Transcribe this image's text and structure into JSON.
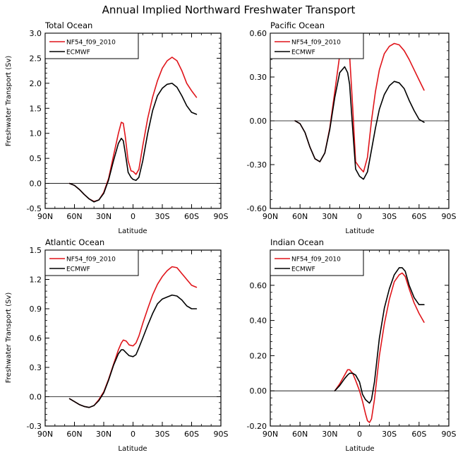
{
  "figure": {
    "title": "Annual Implied Northward Freshwater Transport",
    "series_colors": [
      "#e0141a",
      "#000000"
    ]
  },
  "chart_data": [
    {
      "type": "line",
      "panel_title": "Total Ocean",
      "xlabel": "Latitude",
      "ylabel": "Freshwater Transport (Sv)",
      "xlim": [
        -90,
        90
      ],
      "x_ticks": [
        -90,
        -60,
        -30,
        0,
        30,
        60,
        90
      ],
      "x_tick_labels": [
        "90N",
        "60N",
        "30N",
        "0",
        "30S",
        "60S",
        "90S"
      ],
      "ylim": [
        -0.5,
        3.0
      ],
      "y_ticks": [
        -0.5,
        0.0,
        0.5,
        1.0,
        1.5,
        2.0,
        2.5,
        3.0
      ],
      "y_tick_labels": [
        "-0.5",
        "0.0",
        "0.5",
        "1.0",
        "1.5",
        "2.0",
        "2.5",
        "3.0"
      ],
      "zero_line": true,
      "legend": "top-left",
      "series": [
        {
          "name": "NF54_f09_2010",
          "color": "#e0141a",
          "x": [
            -65,
            -60,
            -55,
            -50,
            -45,
            -40,
            -35,
            -30,
            -25,
            -20,
            -15,
            -12,
            -10,
            -8,
            -5,
            -2,
            0,
            3,
            6,
            10,
            15,
            20,
            25,
            30,
            35,
            40,
            45,
            50,
            55,
            60,
            65
          ],
          "y": [
            0.0,
            -0.04,
            -0.12,
            -0.22,
            -0.31,
            -0.36,
            -0.33,
            -0.18,
            0.1,
            0.55,
            1.0,
            1.22,
            1.2,
            0.95,
            0.45,
            0.25,
            0.24,
            0.18,
            0.28,
            0.75,
            1.3,
            1.72,
            2.05,
            2.3,
            2.45,
            2.52,
            2.45,
            2.25,
            2.0,
            1.85,
            1.72
          ]
        },
        {
          "name": "ECMWF",
          "color": "#000000",
          "x": [
            -65,
            -60,
            -55,
            -50,
            -45,
            -40,
            -35,
            -30,
            -25,
            -20,
            -15,
            -12,
            -10,
            -8,
            -5,
            -2,
            0,
            3,
            6,
            10,
            15,
            20,
            25,
            30,
            35,
            40,
            45,
            50,
            55,
            60,
            65
          ],
          "y": [
            0.0,
            -0.04,
            -0.12,
            -0.22,
            -0.31,
            -0.37,
            -0.33,
            -0.2,
            0.07,
            0.45,
            0.8,
            0.9,
            0.85,
            0.62,
            0.22,
            0.12,
            0.08,
            0.06,
            0.12,
            0.45,
            1.0,
            1.45,
            1.75,
            1.9,
            1.98,
            2.0,
            1.92,
            1.75,
            1.55,
            1.42,
            1.38
          ]
        }
      ]
    },
    {
      "type": "line",
      "panel_title": "Pacific Ocean",
      "xlabel": "Latitude",
      "ylabel": "",
      "xlim": [
        -90,
        90
      ],
      "x_ticks": [
        -90,
        -60,
        -30,
        0,
        30,
        60,
        90
      ],
      "x_tick_labels": [
        "90N",
        "60N",
        "30N",
        "0",
        "30S",
        "60S",
        "90S"
      ],
      "ylim": [
        -0.6,
        0.6
      ],
      "y_ticks": [
        -0.6,
        -0.3,
        0.0,
        0.3,
        0.6
      ],
      "y_tick_labels": [
        "-0.60",
        "-0.30",
        "0.00",
        "0.30",
        "0.60"
      ],
      "zero_line": true,
      "legend": "top-left",
      "series": [
        {
          "name": "NF54_f09_2010",
          "color": "#e0141a",
          "x": [
            -65,
            -60,
            -55,
            -50,
            -45,
            -40,
            -35,
            -30,
            -25,
            -20,
            -15,
            -12,
            -10,
            -7,
            -4,
            0,
            4,
            8,
            12,
            16,
            20,
            25,
            30,
            35,
            40,
            45,
            50,
            55,
            60,
            65
          ],
          "y": [
            0.0,
            -0.02,
            -0.08,
            -0.18,
            -0.26,
            -0.28,
            -0.22,
            -0.05,
            0.2,
            0.45,
            0.57,
            0.55,
            0.45,
            0.1,
            -0.28,
            -0.32,
            -0.35,
            -0.25,
            0.0,
            0.2,
            0.35,
            0.46,
            0.51,
            0.53,
            0.52,
            0.48,
            0.42,
            0.35,
            0.28,
            0.21
          ]
        },
        {
          "name": "ECMWF",
          "color": "#000000",
          "x": [
            -65,
            -60,
            -55,
            -50,
            -45,
            -40,
            -35,
            -30,
            -25,
            -20,
            -15,
            -12,
            -10,
            -7,
            -4,
            0,
            4,
            8,
            12,
            16,
            20,
            25,
            30,
            35,
            40,
            45,
            50,
            55,
            60,
            65
          ],
          "y": [
            0.0,
            -0.02,
            -0.08,
            -0.18,
            -0.26,
            -0.28,
            -0.22,
            -0.06,
            0.16,
            0.33,
            0.37,
            0.33,
            0.25,
            -0.05,
            -0.33,
            -0.38,
            -0.4,
            -0.35,
            -0.2,
            -0.05,
            0.08,
            0.18,
            0.24,
            0.27,
            0.26,
            0.22,
            0.14,
            0.07,
            0.01,
            -0.01
          ]
        }
      ]
    },
    {
      "type": "line",
      "panel_title": "Atlantic Ocean",
      "xlabel": "Latitude",
      "ylabel": "Freshwater Transport (Sv)",
      "xlim": [
        -90,
        90
      ],
      "x_ticks": [
        -90,
        -60,
        -30,
        0,
        30,
        60,
        90
      ],
      "x_tick_labels": [
        "90N",
        "60N",
        "30N",
        "0",
        "30S",
        "60S",
        "90S"
      ],
      "ylim": [
        -0.3,
        1.5
      ],
      "y_ticks": [
        -0.3,
        0.0,
        0.3,
        0.6,
        0.9,
        1.2,
        1.5
      ],
      "y_tick_labels": [
        "-0.3",
        "0.0",
        "0.3",
        "0.6",
        "0.9",
        "1.2",
        "1.5"
      ],
      "zero_line": true,
      "legend": "top-left",
      "series": [
        {
          "name": "NF54_f09_2010",
          "color": "#e0141a",
          "x": [
            -65,
            -60,
            -55,
            -50,
            -45,
            -40,
            -35,
            -30,
            -25,
            -20,
            -15,
            -12,
            -10,
            -7,
            -4,
            0,
            3,
            6,
            10,
            15,
            20,
            25,
            30,
            35,
            40,
            45,
            50,
            55,
            60,
            65
          ],
          "y": [
            -0.02,
            -0.05,
            -0.08,
            -0.1,
            -0.11,
            -0.09,
            -0.03,
            0.05,
            0.18,
            0.33,
            0.48,
            0.55,
            0.58,
            0.57,
            0.53,
            0.52,
            0.55,
            0.62,
            0.75,
            0.9,
            1.04,
            1.15,
            1.23,
            1.29,
            1.33,
            1.32,
            1.26,
            1.2,
            1.14,
            1.12
          ]
        },
        {
          "name": "ECMWF",
          "color": "#000000",
          "x": [
            -65,
            -60,
            -55,
            -50,
            -45,
            -40,
            -35,
            -30,
            -25,
            -20,
            -15,
            -12,
            -10,
            -7,
            -4,
            0,
            3,
            6,
            10,
            15,
            20,
            25,
            30,
            35,
            40,
            45,
            50,
            55,
            60,
            65
          ],
          "y": [
            -0.02,
            -0.05,
            -0.08,
            -0.1,
            -0.11,
            -0.09,
            -0.04,
            0.04,
            0.17,
            0.32,
            0.44,
            0.48,
            0.48,
            0.45,
            0.42,
            0.41,
            0.43,
            0.5,
            0.6,
            0.73,
            0.85,
            0.95,
            1.0,
            1.02,
            1.04,
            1.03,
            0.99,
            0.93,
            0.9,
            0.9
          ]
        }
      ]
    },
    {
      "type": "line",
      "panel_title": "Indian Ocean",
      "xlabel": "Latitude",
      "ylabel": "",
      "xlim": [
        -90,
        90
      ],
      "x_ticks": [
        -90,
        -60,
        -30,
        0,
        30,
        60,
        90
      ],
      "x_tick_labels": [
        "90N",
        "60N",
        "30N",
        "0",
        "30S",
        "60S",
        "90S"
      ],
      "ylim": [
        -0.2,
        0.8
      ],
      "y_ticks": [
        -0.2,
        0.0,
        0.2,
        0.4,
        0.6
      ],
      "y_tick_labels": [
        "-0.20",
        "0.00",
        "0.20",
        "0.40",
        "0.60"
      ],
      "zero_line": true,
      "legend": "top-left",
      "series": [
        {
          "name": "NF54_f09_2010",
          "color": "#e0141a",
          "x": [
            -25,
            -20,
            -15,
            -12,
            -10,
            -7,
            -4,
            0,
            3,
            6,
            8,
            10,
            12,
            15,
            18,
            20,
            25,
            30,
            35,
            40,
            43,
            46,
            50,
            55,
            60,
            65
          ],
          "y": [
            0.0,
            0.04,
            0.09,
            0.12,
            0.12,
            0.1,
            0.06,
            0.0,
            -0.06,
            -0.13,
            -0.17,
            -0.18,
            -0.16,
            -0.05,
            0.1,
            0.2,
            0.38,
            0.52,
            0.62,
            0.66,
            0.67,
            0.65,
            0.58,
            0.5,
            0.44,
            0.39
          ]
        },
        {
          "name": "ECMWF",
          "color": "#000000",
          "x": [
            -25,
            -20,
            -15,
            -12,
            -10,
            -7,
            -4,
            0,
            3,
            6,
            8,
            10,
            12,
            15,
            18,
            20,
            25,
            30,
            35,
            40,
            43,
            46,
            50,
            55,
            60,
            65
          ],
          "y": [
            0.0,
            0.03,
            0.07,
            0.09,
            0.1,
            0.1,
            0.09,
            0.05,
            -0.02,
            -0.05,
            -0.06,
            -0.07,
            -0.05,
            0.05,
            0.2,
            0.3,
            0.47,
            0.58,
            0.66,
            0.7,
            0.7,
            0.68,
            0.6,
            0.53,
            0.49,
            0.49
          ]
        }
      ]
    }
  ]
}
